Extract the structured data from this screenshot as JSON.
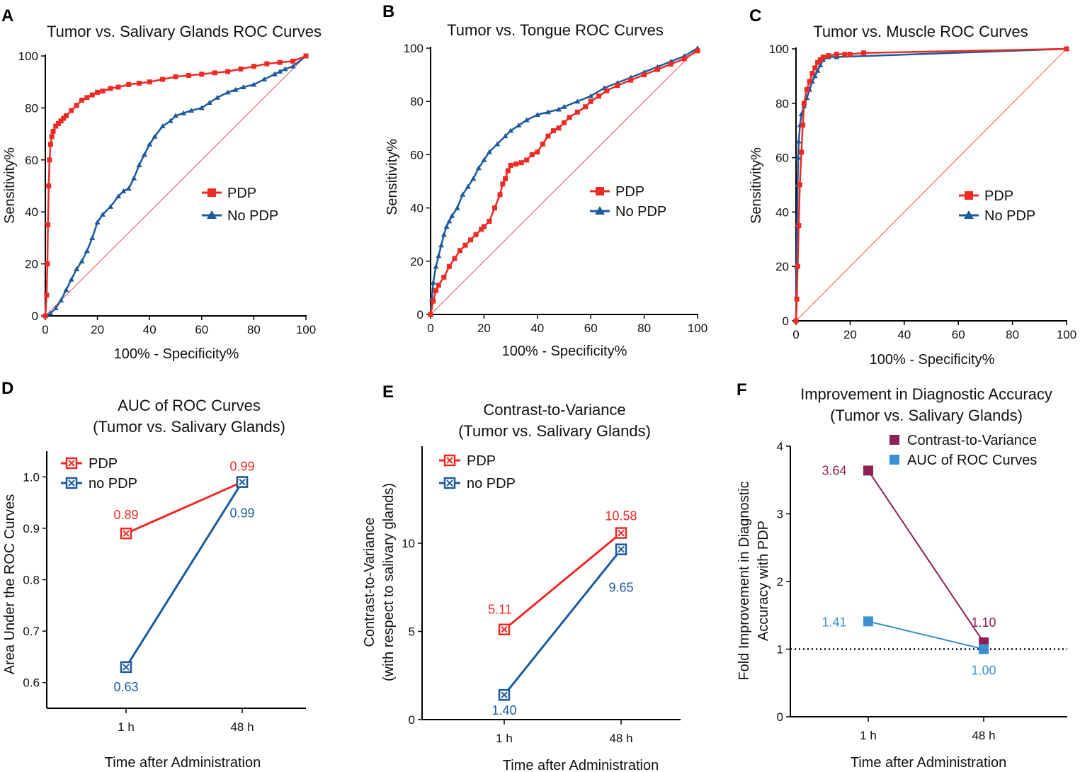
{
  "colors": {
    "pdp": "#ee2a24",
    "nopdp": "#1c5a9c",
    "cvr": "#8f1f54",
    "auc": "#3a90d0",
    "diag": "#ee2a24",
    "axis": "#000000"
  },
  "chart_data": [
    {
      "panel": "A",
      "type": "line",
      "title": "Tumor vs. Salivary Glands ROC Curves",
      "xlabel": "100% - Specificity%",
      "ylabel": "Sensitivity%",
      "xlim": [
        0,
        100
      ],
      "ylim": [
        0,
        100
      ],
      "xticks": [
        "0",
        "20",
        "40",
        "60",
        "80",
        "100"
      ],
      "yticks": [
        "0",
        "20",
        "40",
        "60",
        "80",
        "100"
      ],
      "legend_position": "middle-right",
      "series": [
        {
          "name": "PDP",
          "color": "#ee2a24",
          "marker": "square",
          "x": [
            0,
            0.5,
            0.8,
            1,
            1.3,
            1.6,
            2,
            2.5,
            3,
            4,
            5,
            6,
            7,
            8,
            10,
            12,
            14,
            16,
            18,
            20,
            22,
            25,
            28,
            32,
            36,
            40,
            45,
            50,
            55,
            60,
            65,
            70,
            75,
            80,
            85,
            90,
            95,
            100
          ],
          "y": [
            0,
            8,
            20,
            35,
            50,
            60,
            66,
            69,
            71,
            73,
            74,
            75,
            76,
            77,
            79,
            81,
            83,
            84,
            85,
            86,
            86.5,
            87.5,
            88,
            89,
            89.5,
            90,
            91,
            92,
            92.5,
            93,
            93.5,
            94,
            95,
            96,
            97,
            97.5,
            98,
            100
          ]
        },
        {
          "name": "No PDP",
          "color": "#1c5a9c",
          "marker": "triangle",
          "x": [
            0,
            2,
            4,
            6,
            8,
            10,
            12,
            14,
            16,
            18,
            20,
            22,
            25,
            28,
            30,
            32,
            34,
            36,
            38,
            40,
            42,
            45,
            48,
            50,
            53,
            56,
            60,
            63,
            66,
            70,
            73,
            76,
            80,
            84,
            88,
            90,
            92,
            95,
            100
          ],
          "y": [
            0,
            1,
            3,
            6,
            10,
            14,
            18,
            21,
            25,
            30,
            36,
            39,
            42,
            46,
            48,
            49,
            53,
            58,
            62,
            66,
            69,
            73,
            75,
            77,
            78,
            79,
            80,
            82,
            84,
            86,
            87,
            88,
            89,
            91,
            93,
            94,
            95,
            96,
            100
          ]
        }
      ]
    },
    {
      "panel": "B",
      "type": "line",
      "title": "Tumor vs. Tongue ROC Curves",
      "xlabel": "100% - Specificity%",
      "ylabel": "Sensitivity%",
      "xlim": [
        0,
        100
      ],
      "ylim": [
        0,
        100
      ],
      "xticks": [
        "0",
        "20",
        "40",
        "60",
        "80",
        "100"
      ],
      "yticks": [
        "0",
        "20",
        "40",
        "60",
        "80",
        "100"
      ],
      "legend_position": "middle-right",
      "series": [
        {
          "name": "PDP",
          "color": "#ee2a24",
          "marker": "square",
          "x": [
            0,
            1,
            2,
            3,
            5,
            7,
            9,
            11,
            13,
            15,
            17,
            19,
            20,
            22,
            24,
            26,
            27,
            28,
            29,
            30,
            32,
            34,
            36,
            38,
            40,
            42,
            44,
            46,
            48,
            50,
            52,
            55,
            58,
            60,
            63,
            66,
            70,
            75,
            80,
            85,
            90,
            95,
            100
          ],
          "y": [
            0,
            5,
            9,
            11,
            14,
            18,
            21,
            24,
            26,
            28,
            30,
            32,
            33,
            35,
            40,
            45,
            49,
            51,
            54,
            56,
            56.5,
            57,
            58,
            60,
            61,
            64,
            67,
            69,
            70,
            72,
            74,
            76,
            78,
            80,
            82,
            84,
            86,
            88,
            90,
            92,
            94,
            96,
            99
          ]
        },
        {
          "name": "No PDP",
          "color": "#1c5a9c",
          "marker": "triangle",
          "x": [
            0,
            0.5,
            1,
            2,
            3,
            4,
            5,
            6,
            7,
            8,
            10,
            12,
            14,
            16,
            18,
            20,
            22,
            25,
            28,
            30,
            33,
            36,
            40,
            44,
            48,
            50,
            55,
            60,
            65,
            70,
            75,
            80,
            85,
            90,
            95,
            100
          ],
          "y": [
            0,
            6,
            12,
            18,
            22,
            26,
            30,
            33,
            35,
            37,
            40,
            45,
            48,
            51,
            55,
            58,
            61,
            64,
            67,
            69,
            71,
            73,
            75,
            76,
            77,
            78,
            80,
            82,
            85,
            87,
            89,
            91,
            93,
            95,
            97,
            100
          ]
        }
      ]
    },
    {
      "panel": "C",
      "type": "line",
      "title": "Tumor vs. Muscle ROC Curves",
      "xlabel": "100% - Specificity%",
      "ylabel": "Sensitivity%",
      "xlim": [
        0,
        100
      ],
      "ylim": [
        0,
        100
      ],
      "xticks": [
        "0",
        "20",
        "40",
        "60",
        "80",
        "100"
      ],
      "yticks": [
        "0",
        "20",
        "40",
        "60",
        "80",
        "100"
      ],
      "legend_position": "middle-right",
      "series": [
        {
          "name": "PDP",
          "color": "#ee2a24",
          "marker": "square",
          "x": [
            0,
            0.3,
            0.6,
            1,
            1.4,
            2,
            2.5,
            3,
            4,
            5,
            6,
            7,
            8,
            9,
            10,
            12,
            15,
            18,
            20,
            25,
            100
          ],
          "y": [
            0,
            8,
            20,
            35,
            50,
            62,
            72,
            80,
            85,
            88,
            91,
            93,
            95,
            96,
            97,
            97.5,
            98,
            98,
            98,
            98.5,
            100
          ]
        },
        {
          "name": "No PDP",
          "color": "#1c5a9c",
          "marker": "triangle",
          "x": [
            0,
            0.2,
            0.4,
            0.6,
            0.8,
            1,
            1.5,
            2,
            3,
            4,
            5,
            6,
            7,
            8,
            9,
            10,
            12,
            15,
            100
          ],
          "y": [
            0,
            20,
            35,
            50,
            60,
            66,
            72,
            76,
            79,
            82,
            85,
            88,
            90,
            92,
            94,
            96,
            97,
            97,
            100
          ]
        }
      ]
    },
    {
      "panel": "D",
      "type": "line",
      "title": [
        "AUC of ROC Curves",
        "(Tumor vs. Salivary Glands)"
      ],
      "xlabel": "Time after Administration",
      "ylabel": "Area Under the ROC Curves",
      "categories": [
        "1 h",
        "48 h"
      ],
      "ylim": [
        0.55,
        1.05
      ],
      "yticks": [
        "0.6",
        "0.7",
        "0.8",
        "0.9",
        "1.0"
      ],
      "legend_position": "top-left",
      "series": [
        {
          "name": "PDP",
          "color": "#ee2a24",
          "values": [
            0.89,
            0.99
          ],
          "labels": [
            "0.89",
            "0.99"
          ]
        },
        {
          "name": "no PDP",
          "color": "#1c5a9c",
          "values": [
            0.63,
            0.99
          ],
          "labels": [
            "0.63",
            "0.99"
          ]
        }
      ]
    },
    {
      "panel": "E",
      "type": "line",
      "title": [
        "Contrast-to-Variance",
        "(Tumor vs. Salivary Glands)"
      ],
      "xlabel": "Time after Administration",
      "ylabel": [
        "Contrast-to-Variance",
        "(with respect to salivary glands)"
      ],
      "categories": [
        "1 h",
        "48 h"
      ],
      "ylim": [
        0,
        15.5
      ],
      "yticks": [
        "0",
        "5",
        "10"
      ],
      "legend_position": "top-left",
      "series": [
        {
          "name": "PDP",
          "color": "#ee2a24",
          "values": [
            5.11,
            10.58
          ],
          "labels": [
            "5.11",
            "10.58"
          ]
        },
        {
          "name": "no PDP",
          "color": "#1c5a9c",
          "values": [
            1.4,
            9.65
          ],
          "labels": [
            "1.40",
            "9.65"
          ]
        }
      ]
    },
    {
      "panel": "F",
      "type": "line",
      "title": [
        "Improvement in Diagnostic Accuracy",
        "(Tumor vs. Salivary Glands)"
      ],
      "xlabel": "Time after Administration",
      "ylabel": [
        "Fold Improvement in Diagnostic",
        "Accuracy with PDP"
      ],
      "categories": [
        "1 h",
        "48 h"
      ],
      "ylim": [
        0,
        4
      ],
      "yticks": [
        "0",
        "1",
        "2",
        "3",
        "4"
      ],
      "reference_line": 1,
      "legend_position": "top-right",
      "series": [
        {
          "name": "Contrast-to-Variance",
          "color": "#8f1f54",
          "values": [
            3.64,
            1.1
          ],
          "labels": [
            "3.64",
            "1.10"
          ]
        },
        {
          "name": "AUC of ROC Curves",
          "color": "#3a90d0",
          "values": [
            1.41,
            1.0
          ],
          "labels": [
            "1.41",
            "1.00"
          ]
        }
      ]
    }
  ]
}
